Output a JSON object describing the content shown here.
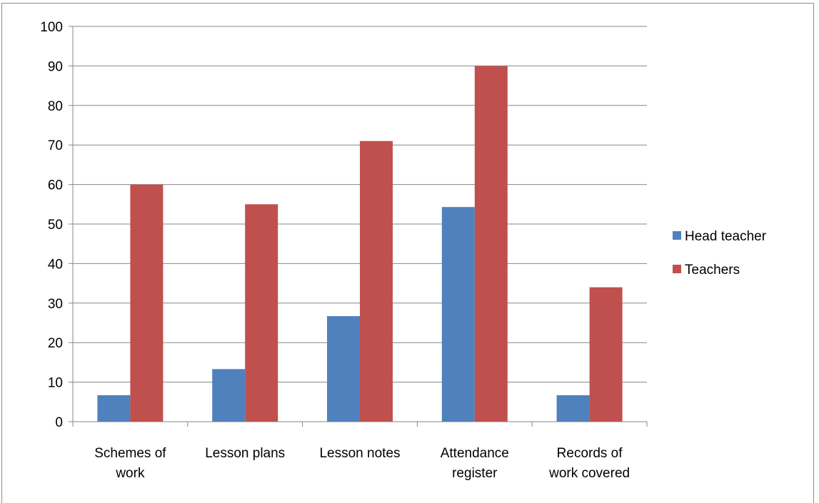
{
  "chart_data": {
    "type": "bar",
    "title": "",
    "xlabel": "",
    "ylabel": "",
    "ylim": [
      0,
      100
    ],
    "yticks": [
      0,
      10,
      20,
      30,
      40,
      50,
      60,
      70,
      80,
      90,
      100
    ],
    "grid": true,
    "legend_position": "right",
    "categories": [
      [
        "Schemes of",
        "work"
      ],
      [
        "Lesson plans"
      ],
      [
        "Lesson notes"
      ],
      [
        "Attendance",
        "register"
      ],
      [
        "Records of",
        "work covered"
      ]
    ],
    "series": [
      {
        "name": "Head teacher",
        "color": "#4f81bd",
        "values": [
          6.7,
          13.3,
          26.7,
          54.3,
          6.7
        ]
      },
      {
        "name": "Teachers",
        "color": "#c0504d",
        "values": [
          60,
          55,
          71,
          90,
          34
        ]
      }
    ]
  }
}
